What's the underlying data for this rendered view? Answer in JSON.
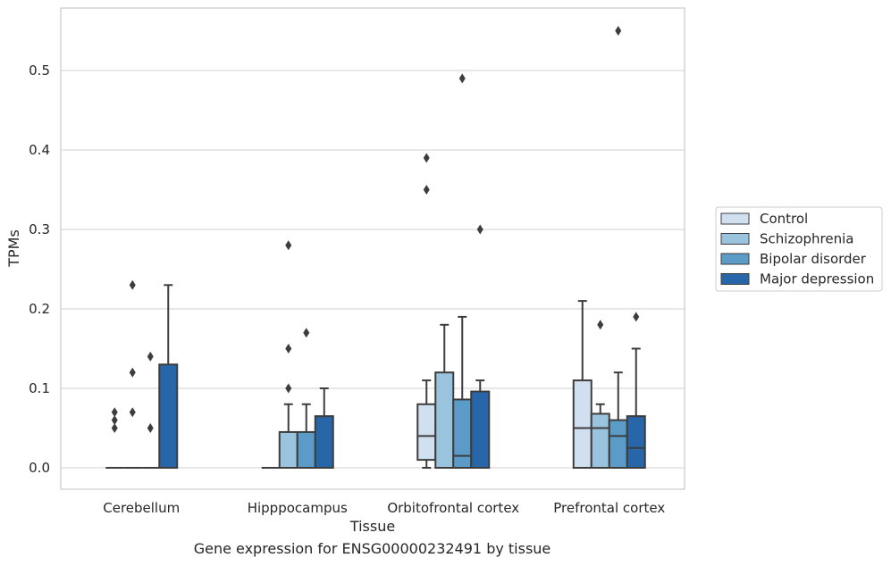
{
  "chart_data": {
    "type": "box",
    "title": "",
    "caption": "Gene expression for ENSG00000232491 by tissue",
    "xlabel": "Tissue",
    "ylabel": "TPMs",
    "ylim": [
      -0.027,
      0.582
    ],
    "yticks": [
      0.0,
      0.1,
      0.2,
      0.3,
      0.4,
      0.5
    ],
    "ytick_labels": [
      "0.0",
      "0.1",
      "0.2",
      "0.3",
      "0.4",
      "0.5"
    ],
    "grid": "horizontal",
    "legend_position": "right",
    "categories": [
      "Cerebellum",
      "Hipppocampus",
      "Orbitofrontal cortex",
      "Prefrontal cortex"
    ],
    "series": [
      {
        "name": "Control",
        "color": "#d1e0f1",
        "boxes": [
          {
            "q1": 0,
            "median": 0,
            "q3": 0,
            "whisker_low": 0,
            "whisker_high": 0,
            "outliers": [
              0.05,
              0.06,
              0.07
            ]
          },
          {
            "q1": 0,
            "median": 0,
            "q3": 0,
            "whisker_low": 0,
            "whisker_high": 0,
            "outliers": []
          },
          {
            "q1": 0.01,
            "median": 0.04,
            "q3": 0.08,
            "whisker_low": 0,
            "whisker_high": 0.11,
            "outliers": [
              0.35,
              0.39
            ]
          },
          {
            "q1": 0,
            "median": 0.05,
            "q3": 0.11,
            "whisker_low": 0,
            "whisker_high": 0.21,
            "outliers": []
          }
        ]
      },
      {
        "name": "Schizophrenia",
        "color": "#9ac3dd",
        "boxes": [
          {
            "q1": 0,
            "median": 0,
            "q3": 0,
            "whisker_low": 0,
            "whisker_high": 0,
            "outliers": [
              0.07,
              0.12,
              0.23
            ]
          },
          {
            "q1": 0,
            "median": 0,
            "q3": 0.045,
            "whisker_low": 0,
            "whisker_high": 0.08,
            "outliers": [
              0.1,
              0.15,
              0.28
            ]
          },
          {
            "q1": 0,
            "median": 0,
            "q3": 0.12,
            "whisker_low": 0,
            "whisker_high": 0.18,
            "outliers": []
          },
          {
            "q1": 0,
            "median": 0.05,
            "q3": 0.068,
            "whisker_low": 0,
            "whisker_high": 0.08,
            "outliers": [
              0.18
            ]
          }
        ]
      },
      {
        "name": "Bipolar disorder",
        "color": "#5b9bc8",
        "boxes": [
          {
            "q1": 0,
            "median": 0,
            "q3": 0,
            "whisker_low": 0,
            "whisker_high": 0,
            "outliers": [
              0.05,
              0.14
            ]
          },
          {
            "q1": 0,
            "median": 0,
            "q3": 0.045,
            "whisker_low": 0,
            "whisker_high": 0.08,
            "outliers": [
              0.17
            ]
          },
          {
            "q1": 0,
            "median": 0.015,
            "q3": 0.086,
            "whisker_low": 0,
            "whisker_high": 0.19,
            "outliers": [
              0.49
            ]
          },
          {
            "q1": 0,
            "median": 0.04,
            "q3": 0.06,
            "whisker_low": 0,
            "whisker_high": 0.12,
            "outliers": [
              0.55
            ]
          }
        ]
      },
      {
        "name": "Major depression",
        "color": "#2766a9",
        "boxes": [
          {
            "q1": 0,
            "median": 0,
            "q3": 0.13,
            "whisker_low": 0,
            "whisker_high": 0.23,
            "outliers": []
          },
          {
            "q1": 0,
            "median": 0,
            "q3": 0.065,
            "whisker_low": 0,
            "whisker_high": 0.1,
            "outliers": []
          },
          {
            "q1": 0,
            "median": 0,
            "q3": 0.096,
            "whisker_low": 0,
            "whisker_high": 0.11,
            "outliers": [
              0.3
            ]
          },
          {
            "q1": 0,
            "median": 0.025,
            "q3": 0.065,
            "whisker_low": 0,
            "whisker_high": 0.15,
            "outliers": [
              0.19
            ]
          }
        ]
      }
    ]
  }
}
